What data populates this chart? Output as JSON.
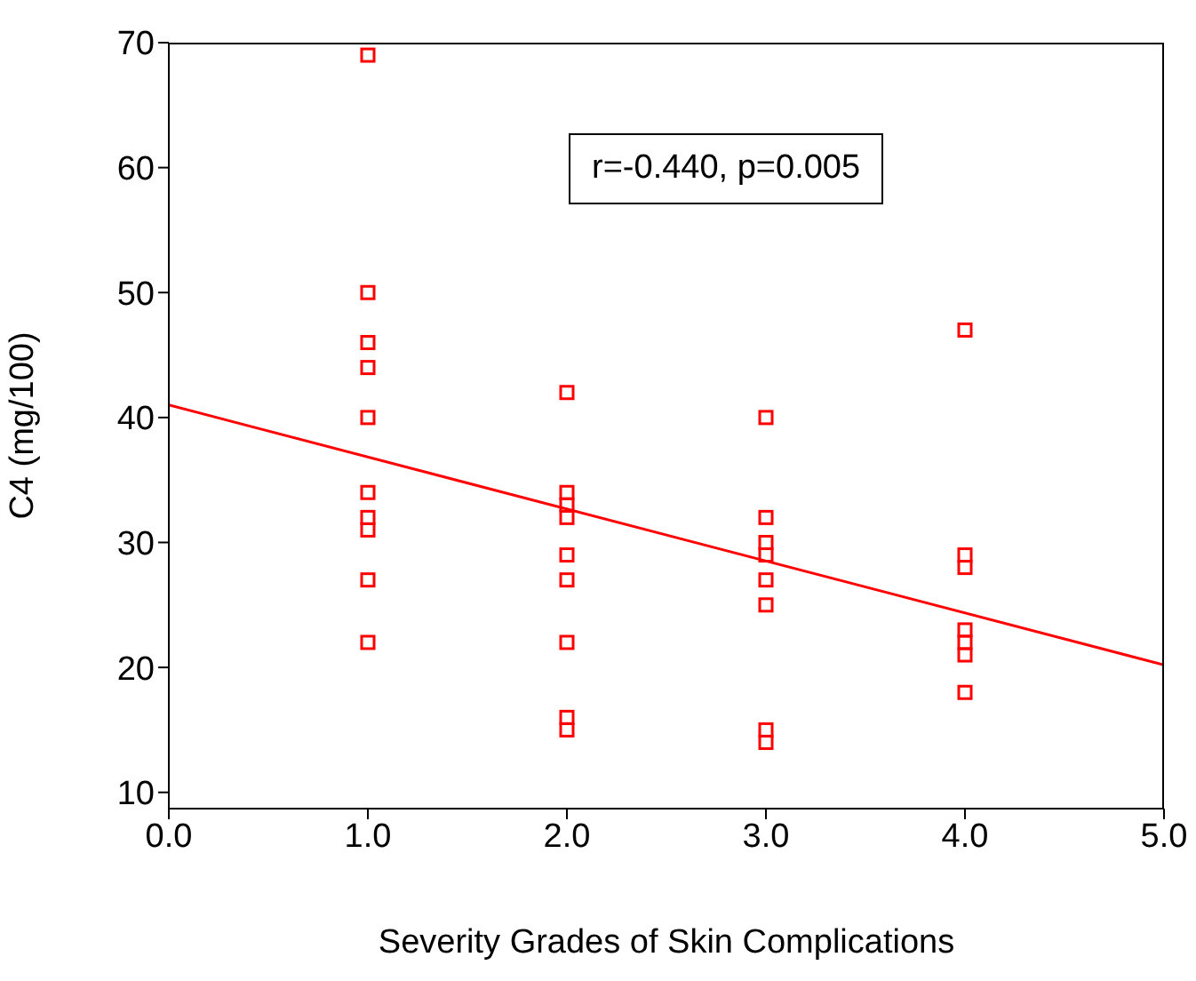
{
  "chart_data": {
    "type": "scatter",
    "xlabel": "Severity Grades of Skin Complications",
    "ylabel": "C4 (mg/100)",
    "annotations": [
      "r=-0.440, p=0.005"
    ],
    "xlim": [
      0,
      5
    ],
    "xticks": [
      {
        "value": 0,
        "label": "0.0"
      },
      {
        "value": 1,
        "label": "1.0"
      },
      {
        "value": 2,
        "label": "2.0"
      },
      {
        "value": 3,
        "label": "3.0"
      },
      {
        "value": 4,
        "label": "4.0"
      },
      {
        "value": 5,
        "label": "5.0"
      }
    ],
    "ylim": [
      8.7,
      70
    ],
    "yticks": [
      10,
      20,
      30,
      40,
      50,
      60,
      70
    ],
    "marker": "square",
    "series": [
      {
        "color": "#ff0000",
        "x": [
          1,
          1,
          1,
          1,
          1,
          1,
          1,
          1,
          1,
          1,
          2,
          2,
          2,
          2,
          2,
          2,
          2,
          2,
          2,
          3,
          3,
          3,
          3,
          3,
          3,
          3,
          3,
          4,
          4,
          4,
          4,
          4,
          4,
          4
        ],
        "values": [
          69,
          50,
          46,
          44,
          40,
          34,
          32,
          31,
          27,
          22,
          42,
          34,
          33,
          32,
          29,
          27,
          22,
          16,
          15,
          40,
          32,
          30,
          29,
          27,
          25,
          15,
          14,
          47,
          29,
          28,
          23,
          22,
          21,
          18
        ]
      },
      {
        "type": "line",
        "color": "#ff0000",
        "marker": "none",
        "x": [
          0,
          5
        ],
        "values": [
          41,
          20.2
        ]
      }
    ]
  }
}
